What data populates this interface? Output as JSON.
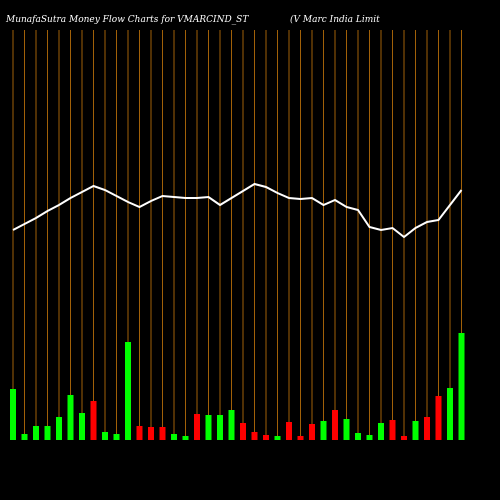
{
  "chart_data": {
    "type": "money-flow",
    "title": "MunafaSutra  Money Flow  Charts for VMARCIND_ST",
    "subtitle": "(V Marc India  Limit",
    "ylim": [
      0,
      500
    ],
    "grid": true,
    "grid_color": "#c8780a",
    "line_color": "#ffffff",
    "price": [
      270,
      276,
      282,
      289,
      295,
      302,
      308,
      314,
      310,
      304,
      298,
      293,
      299,
      304,
      303,
      302,
      302,
      303,
      295,
      302,
      309,
      316,
      313,
      307,
      302,
      301,
      302,
      295,
      300,
      293,
      290,
      273,
      270,
      272,
      263,
      272,
      278,
      280,
      295,
      310
    ],
    "flow": [
      51,
      6,
      14,
      14,
      23,
      45,
      27,
      39,
      8,
      6,
      98,
      14,
      13,
      13,
      6,
      4,
      26,
      25,
      25,
      30,
      17,
      8,
      5,
      4,
      18,
      4,
      16,
      19,
      30,
      21,
      7,
      5,
      17,
      20,
      4,
      19,
      23,
      44,
      52,
      107
    ],
    "flow_colors": [
      "#00ff00",
      "#00ff00",
      "#00ff00",
      "#00ff00",
      "#00ff00",
      "#00ff00",
      "#00ff00",
      "#ff0000",
      "#00ff00",
      "#00ff00",
      "#00ff00",
      "#ff0000",
      "#ff0000",
      "#ff0000",
      "#00ff00",
      "#00ff00",
      "#ff0000",
      "#00ff00",
      "#00ff00",
      "#00ff00",
      "#ff0000",
      "#ff0000",
      "#ff0000",
      "#00ff00",
      "#ff0000",
      "#ff0000",
      "#ff0000",
      "#00ff00",
      "#ff0000",
      "#00ff00",
      "#00ff00",
      "#00ff00",
      "#00ff00",
      "#ff0000",
      "#ff0000",
      "#00ff00",
      "#ff0000",
      "#ff0000",
      "#00ff00",
      "#00ff00"
    ]
  }
}
